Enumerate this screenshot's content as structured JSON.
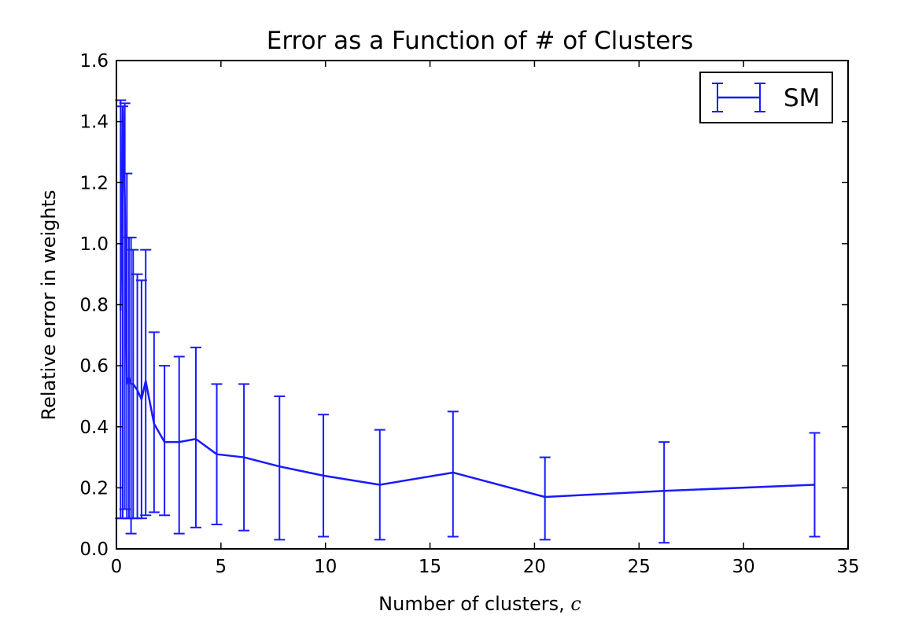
{
  "chart_data": {
    "type": "line",
    "title": "Error as a Function of # of Clusters",
    "xlabel": "Number of clusters, ",
    "xlabel_var": "c",
    "ylabel": "Relative error in weights",
    "xlim": [
      0,
      35
    ],
    "ylim": [
      0,
      1.6
    ],
    "xticks": [
      0,
      5,
      10,
      15,
      20,
      25,
      30,
      35
    ],
    "xtick_labels": [
      "0",
      "5",
      "10",
      "15",
      "20",
      "25",
      "30",
      "35"
    ],
    "yticks": [
      0,
      0.2,
      0.4,
      0.6,
      0.8,
      1.0,
      1.2,
      1.4,
      1.6
    ],
    "ytick_labels": [
      "0.0",
      "0.2",
      "0.4",
      "0.6",
      "0.8",
      "1.0",
      "1.2",
      "1.4",
      "1.6"
    ],
    "grid": false,
    "legend_position": "top-right",
    "series": [
      {
        "name": "SM",
        "color": "#1a1aff",
        "error_bars": true,
        "points": [
          {
            "x": 0.2,
            "y": 0.78,
            "ylow": 0.1,
            "yhigh": 1.47
          },
          {
            "x": 0.3,
            "y": 1.45,
            "ylow": 0.1,
            "yhigh": 1.45
          },
          {
            "x": 0.4,
            "y": 1.15,
            "ylow": 0.13,
            "yhigh": 1.46
          },
          {
            "x": 0.5,
            "y": 0.54,
            "ylow": 0.1,
            "yhigh": 1.23
          },
          {
            "x": 0.6,
            "y": 0.56,
            "ylow": 0.1,
            "yhigh": 1.02
          },
          {
            "x": 0.7,
            "y": 0.54,
            "ylow": 0.05,
            "yhigh": 1.02
          },
          {
            "x": 0.8,
            "y": 0.54,
            "ylow": 0.1,
            "yhigh": 0.98
          },
          {
            "x": 1.0,
            "y": 0.52,
            "ylow": 0.1,
            "yhigh": 0.9
          },
          {
            "x": 1.2,
            "y": 0.49,
            "ylow": 0.1,
            "yhigh": 0.88
          },
          {
            "x": 1.4,
            "y": 0.55,
            "ylow": 0.11,
            "yhigh": 0.98
          },
          {
            "x": 1.8,
            "y": 0.41,
            "ylow": 0.12,
            "yhigh": 0.71
          },
          {
            "x": 2.3,
            "y": 0.35,
            "ylow": 0.11,
            "yhigh": 0.6
          },
          {
            "x": 3.0,
            "y": 0.35,
            "ylow": 0.05,
            "yhigh": 0.63
          },
          {
            "x": 3.8,
            "y": 0.36,
            "ylow": 0.07,
            "yhigh": 0.66
          },
          {
            "x": 4.8,
            "y": 0.31,
            "ylow": 0.08,
            "yhigh": 0.54
          },
          {
            "x": 6.1,
            "y": 0.3,
            "ylow": 0.06,
            "yhigh": 0.54
          },
          {
            "x": 7.8,
            "y": 0.27,
            "ylow": 0.03,
            "yhigh": 0.5
          },
          {
            "x": 9.9,
            "y": 0.24,
            "ylow": 0.04,
            "yhigh": 0.44
          },
          {
            "x": 12.6,
            "y": 0.21,
            "ylow": 0.03,
            "yhigh": 0.39
          },
          {
            "x": 16.1,
            "y": 0.25,
            "ylow": 0.04,
            "yhigh": 0.45
          },
          {
            "x": 20.5,
            "y": 0.17,
            "ylow": 0.03,
            "yhigh": 0.3
          },
          {
            "x": 26.2,
            "y": 0.19,
            "ylow": 0.02,
            "yhigh": 0.35
          },
          {
            "x": 33.4,
            "y": 0.21,
            "ylow": 0.04,
            "yhigh": 0.38
          }
        ]
      }
    ]
  }
}
